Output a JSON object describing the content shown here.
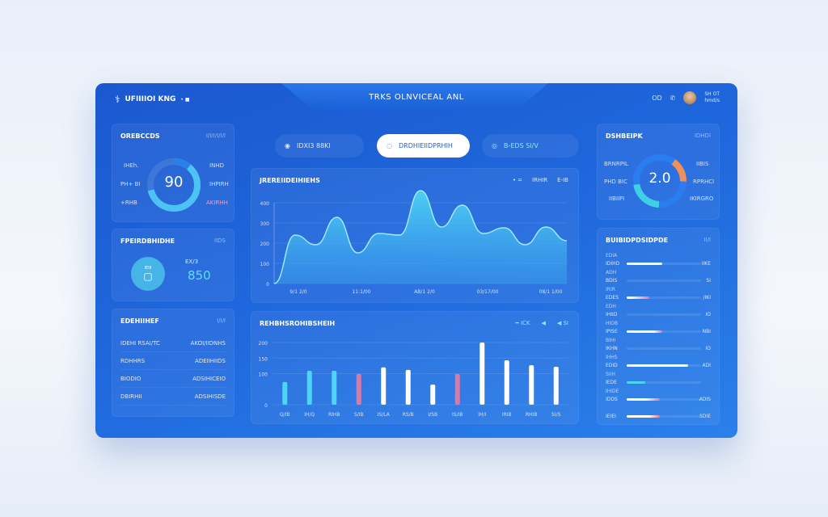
{
  "header": {
    "brand": "UFIIIIOI KNG",
    "brand_dot": "• ■",
    "title": "TRKS OLNVICEAL ANL",
    "icon_label": "OD",
    "user_name": "SH OT",
    "user_sub": "hmd/s"
  },
  "left_donut": {
    "title": "OREBCCDS",
    "extra": "I/I/I/I/I/I",
    "value": "90",
    "labels_left": [
      "IHEh.",
      "PH+ BI",
      "+RHB"
    ],
    "labels_right": [
      "INHD",
      "IHPIRH",
      "AKIRHH"
    ],
    "fraction": 0.9
  },
  "badge_panel": {
    "title": "FPEIRDBHIDHE",
    "extra": "IIDS",
    "badge_label": "IEIII",
    "value_label": "EX/3",
    "value": "850"
  },
  "list_panel": {
    "title": "EDEHIIHEF",
    "extra": "I/I/I",
    "rows": [
      {
        "label": "IDEHI RSAI/TC",
        "value": "AKOI/IIDNHS"
      },
      {
        "label": "RDHHRS",
        "value": "ADEIIHIIDS"
      },
      {
        "label": "BIODIO",
        "value": "ADSIHICEIO"
      },
      {
        "label": "DBIRHII",
        "value": "ADSIHISDE"
      }
    ]
  },
  "tabs": [
    {
      "label": "IDXI3 88KI",
      "active": false
    },
    {
      "label": "DRDHIEIIDPRHIH",
      "active": true
    },
    {
      "label": "B-EDS SI/V",
      "active": false
    }
  ],
  "area_chart_panel": {
    "title": "JREREIIDEIHIEHS",
    "legend": [
      "• =",
      "IRHIR",
      "E-IB"
    ]
  },
  "bar_chart_panel": {
    "title": "REHBHSROHIBSHEIH",
    "legend": [
      "━ ICK",
      "◀",
      "◀ SI"
    ]
  },
  "right_donut": {
    "title": "DSHBEIPK",
    "extra": "IDHDI",
    "value": "2.0",
    "labels_left": [
      "BRNRPIL",
      "PHD BIC",
      "IIBIIPI"
    ],
    "labels_right": [
      "IIBIS",
      "RPRHCI",
      "IKIRGRO"
    ]
  },
  "progress_panel": {
    "title": "BUIBIDPDSIDPDE",
    "extra": "II/I",
    "items": [
      {
        "label": "IDIHD",
        "sub": "EDIA",
        "value": "IIKE",
        "fill": 0.48,
        "accent": 0
      },
      {
        "label": "BDIS",
        "sub": "ADH",
        "value": "SI",
        "fill": 0,
        "accent": 0
      },
      {
        "label": "EDES",
        "sub": "IRIR",
        "value": "/IKI",
        "fill": 0.3,
        "accent": 0.25
      },
      {
        "label": "IHIID",
        "sub": "EDH",
        "value": "IO",
        "fill": 0,
        "accent": 0
      },
      {
        "label": "IPISE",
        "sub": "HIOB",
        "value": "NBI",
        "fill": 0.48,
        "accent": 0.12
      },
      {
        "label": "IKHN",
        "sub": "BIHI",
        "value": "IO",
        "fill": 0,
        "accent": 0
      },
      {
        "label": "EDID",
        "sub": "IHHS",
        "value": "ADI",
        "fill": 0.83,
        "accent": 0
      },
      {
        "label": "IEDE",
        "sub": "SIIH",
        "value": "",
        "fill": 0.25,
        "accent": 0,
        "cyan": true
      },
      {
        "label": "IDDS",
        "sub": "IHIDE",
        "value": "ADIS",
        "fill": 0.45,
        "accent": 0.2
      },
      {
        "label": "IEIEI",
        "sub": "",
        "value": "SDIE",
        "fill": 0.45,
        "accent": 0.15
      }
    ]
  },
  "colors": {
    "accent_cyan": "#4fd4f6",
    "accent_pink": "#d77aa8",
    "accent_orange": "#f0915a",
    "panel_blue": "#1f68dd"
  },
  "chart_data": [
    {
      "type": "area",
      "title": "JREREIIDEIHIEHS",
      "x_ticks": [
        "9/1 2/0",
        "11:1/00",
        "AB/1 2/0",
        "03/17/00",
        "08/1 1/00"
      ],
      "y_ticks": [
        "0",
        "100",
        "200",
        "300",
        "400"
      ],
      "ylim": [
        0,
        400
      ],
      "values": [
        0,
        240,
        192,
        328,
        152,
        248,
        240,
        460,
        280,
        388,
        248,
        276,
        192,
        280,
        212
      ],
      "grid": true
    },
    {
      "type": "bar",
      "title": "REHBHSROHIBSHEIH",
      "categories": [
        "Q/IB",
        "IH/Q",
        "RIHB",
        "S/IB",
        "IS/LA",
        "RS/B",
        "I/SB",
        "IS/IB",
        "IH/I",
        "IRIB",
        "RHIB",
        "SI/S"
      ],
      "y_ticks": [
        "0",
        "100",
        "150",
        "200"
      ],
      "ylim": [
        0,
        200
      ],
      "values": [
        73,
        109,
        109,
        99,
        120,
        112,
        65,
        99,
        200,
        143,
        127,
        122
      ],
      "bar_colors": [
        "#4fd4f6",
        "#4fd4f6",
        "#4fd4f6",
        "#d77aa8",
        "#ffffff",
        "#ffffff",
        "#ffffff",
        "#d77aa8",
        "#ffffff",
        "#ffffff",
        "#ffffff",
        "#ffffff"
      ],
      "grid": true
    }
  ]
}
